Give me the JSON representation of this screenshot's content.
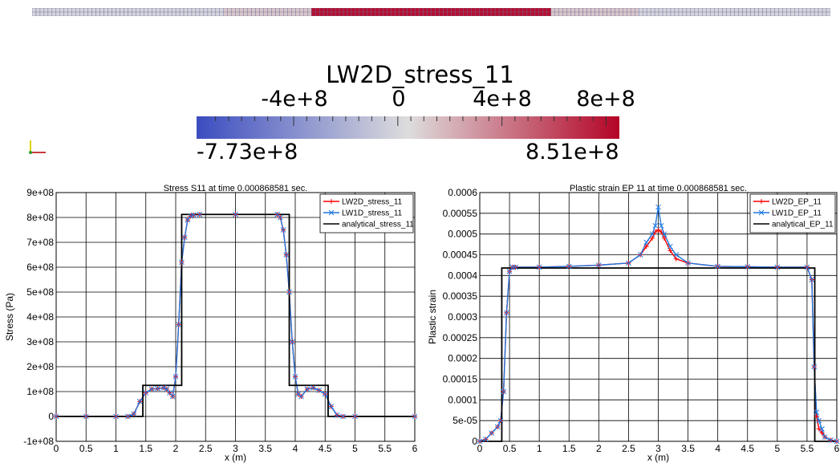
{
  "colorbar": {
    "title": "LW2D_stress_11",
    "tick_labels": [
      "-4e+8",
      "0",
      "4e+8",
      "8e+8"
    ],
    "tick_values": [
      -400000000,
      0,
      400000000,
      800000000
    ],
    "range_min_label": "-7.73e+8",
    "range_max_label": "8.51e+8",
    "range": [
      -773000000,
      851000000
    ],
    "colors": [
      "#3b4cc0",
      "#dddddd",
      "#b40426"
    ]
  },
  "axes_indicator": {
    "icon": "axes-triad-icon"
  },
  "chart_data": [
    {
      "type": "line",
      "title": "Stress S11 at time 0.000868581 sec.",
      "xlabel": "x (m)",
      "ylabel": "Stress (Pa)",
      "xlim": [
        0,
        6
      ],
      "ylim": [
        -100000000,
        900000000
      ],
      "x_ticks": [
        0,
        0.5,
        1,
        1.5,
        2,
        2.5,
        3,
        3.5,
        4,
        4.5,
        5,
        5.5,
        6
      ],
      "x_tick_labels": [
        "0",
        "0.5",
        "1",
        "1.5",
        "2",
        "2.5",
        "3",
        "3.5",
        "4",
        "4.5",
        "5",
        "5.5",
        "6"
      ],
      "y_ticks": [
        -100000000,
        0,
        100000000,
        200000000,
        300000000,
        400000000,
        500000000,
        600000000,
        700000000,
        800000000,
        900000000
      ],
      "y_tick_labels": [
        "-1e+08",
        "0",
        "1e+08",
        "2e+08",
        "3e+08",
        "4e+08",
        "5e+08",
        "6e+08",
        "7e+08",
        "8e+08",
        "9e+08"
      ],
      "grid": true,
      "legend_position": "top-right",
      "series": [
        {
          "name": "LW2D_stress_11",
          "color": "#ff0000",
          "marker": "plus",
          "x": [
            0,
            0.5,
            1,
            1.2,
            1.3,
            1.4,
            1.5,
            1.6,
            1.7,
            1.8,
            1.85,
            1.9,
            1.95,
            2.0,
            2.05,
            2.1,
            2.15,
            2.2,
            2.25,
            2.3,
            2.4,
            3.0,
            3.7,
            3.75,
            3.8,
            3.85,
            3.9,
            3.95,
            4.0,
            4.05,
            4.1,
            4.2,
            4.3,
            4.4,
            4.5,
            4.6,
            4.7,
            4.8,
            5.0,
            6.0
          ],
          "y": [
            0,
            0,
            0,
            0,
            10000000,
            60000000,
            95000000,
            110000000,
            112000000,
            115000000,
            110000000,
            95000000,
            80000000,
            160000000,
            370000000,
            620000000,
            720000000,
            790000000,
            805000000,
            810000000,
            812000000,
            812000000,
            812000000,
            800000000,
            750000000,
            650000000,
            500000000,
            300000000,
            160000000,
            90000000,
            80000000,
            110000000,
            115000000,
            105000000,
            90000000,
            40000000,
            5000000,
            0,
            0,
            0
          ]
        },
        {
          "name": "LW1D_stress_11",
          "color": "#1f77e0",
          "marker": "x",
          "x": [
            0,
            0.5,
            1,
            1.2,
            1.3,
            1.4,
            1.5,
            1.6,
            1.7,
            1.8,
            1.85,
            1.9,
            1.95,
            2.0,
            2.05,
            2.1,
            2.15,
            2.2,
            2.25,
            2.3,
            2.4,
            3.0,
            3.7,
            3.75,
            3.8,
            3.85,
            3.9,
            3.95,
            4.0,
            4.05,
            4.1,
            4.2,
            4.3,
            4.4,
            4.5,
            4.6,
            4.7,
            4.8,
            5.0,
            6.0
          ],
          "y": [
            0,
            0,
            0,
            0,
            10000000,
            60000000,
            95000000,
            110000000,
            112000000,
            115000000,
            110000000,
            95000000,
            80000000,
            160000000,
            370000000,
            620000000,
            720000000,
            790000000,
            805000000,
            810000000,
            812000000,
            812000000,
            812000000,
            800000000,
            750000000,
            650000000,
            500000000,
            300000000,
            160000000,
            90000000,
            80000000,
            110000000,
            115000000,
            105000000,
            90000000,
            40000000,
            5000000,
            0,
            0,
            0
          ]
        },
        {
          "name": "analytical_stress_11",
          "color": "#000000",
          "marker": "none",
          "x": [
            0,
            1.45,
            1.45,
            2.1,
            2.1,
            3.9,
            3.9,
            4.55,
            4.55,
            6
          ],
          "y": [
            0,
            0,
            125000000,
            125000000,
            812000000,
            812000000,
            125000000,
            125000000,
            0,
            0
          ]
        }
      ]
    },
    {
      "type": "line",
      "title": "Plastic strain EP 11 at time 0.000868581 sec.",
      "xlabel": "x (m)",
      "ylabel": "Plastic strain",
      "xlim": [
        0,
        6
      ],
      "ylim": [
        0,
        0.0006
      ],
      "x_ticks": [
        0,
        0.5,
        1,
        1.5,
        2,
        2.5,
        3,
        3.5,
        4,
        4.5,
        5,
        5.5,
        6
      ],
      "x_tick_labels": [
        "0",
        "0.5",
        "1",
        "1.5",
        "2",
        "2.5",
        "3",
        "3.5",
        "4",
        "4.5",
        "5",
        "5.5",
        "6"
      ],
      "y_ticks": [
        0,
        5e-05,
        0.0001,
        0.00015,
        0.0002,
        0.00025,
        0.0003,
        0.00035,
        0.0004,
        0.00045,
        0.0005,
        0.00055,
        0.0006
      ],
      "y_tick_labels": [
        "0",
        "5e-05",
        "0.0001",
        "0.00015",
        "0.0002",
        "0.00025",
        "0.0003",
        "0.00035",
        "0.0004",
        "0.00045",
        "0.0005",
        "0.00055",
        "0.0006"
      ],
      "grid": true,
      "legend_position": "top-right",
      "series": [
        {
          "name": "LW2D_EP_11",
          "color": "#ff0000",
          "marker": "plus",
          "x": [
            0,
            0.1,
            0.2,
            0.3,
            0.35,
            0.4,
            0.45,
            0.5,
            0.55,
            0.6,
            1.0,
            1.5,
            2.0,
            2.5,
            2.7,
            2.8,
            2.9,
            2.95,
            3.0,
            3.05,
            3.1,
            3.2,
            3.3,
            3.5,
            4.0,
            4.5,
            5.0,
            5.5,
            5.58,
            5.62,
            5.66,
            5.7,
            5.75,
            5.8,
            5.9,
            6.0
          ],
          "y": [
            0,
            5e-06,
            2e-05,
            3.5e-05,
            5e-05,
            0.00012,
            0.00031,
            0.00041,
            0.00042,
            0.00042,
            0.00042,
            0.000422,
            0.000425,
            0.00043,
            0.00045,
            0.00047,
            0.00049,
            0.000505,
            0.00051,
            0.000505,
            0.00049,
            0.00046,
            0.00044,
            0.00043,
            0.000422,
            0.000421,
            0.00042,
            0.00042,
            0.00039,
            0.00018,
            6e-05,
            3e-05,
            2e-05,
            1e-05,
            3e-06,
            0
          ]
        },
        {
          "name": "LW1D_EP_11",
          "color": "#1f77e0",
          "marker": "x",
          "x": [
            0,
            0.1,
            0.2,
            0.3,
            0.35,
            0.4,
            0.45,
            0.5,
            0.55,
            0.6,
            1.0,
            1.5,
            2.0,
            2.5,
            2.7,
            2.8,
            2.9,
            2.95,
            3.0,
            3.05,
            3.1,
            3.2,
            3.3,
            3.5,
            4.0,
            4.5,
            5.0,
            5.5,
            5.58,
            5.62,
            5.66,
            5.7,
            5.75,
            5.8,
            5.9,
            6.0
          ],
          "y": [
            0,
            5e-06,
            2e-05,
            3.5e-05,
            5e-05,
            0.00012,
            0.00031,
            0.00041,
            0.00042,
            0.00042,
            0.00042,
            0.000422,
            0.000425,
            0.00043,
            0.00045,
            0.00048,
            0.0005,
            0.00052,
            0.000565,
            0.00052,
            0.0005,
            0.00047,
            0.00045,
            0.00043,
            0.000422,
            0.000421,
            0.00042,
            0.00042,
            0.00039,
            0.00018,
            7e-05,
            5e-05,
            3e-05,
            1e-05,
            3e-06,
            0
          ]
        },
        {
          "name": "analytical_EP_11",
          "color": "#000000",
          "marker": "none",
          "x": [
            0,
            0.37,
            0.37,
            5.63,
            5.63,
            6
          ],
          "y": [
            0,
            0,
            0.000418,
            0.000418,
            0,
            0
          ]
        }
      ]
    }
  ]
}
